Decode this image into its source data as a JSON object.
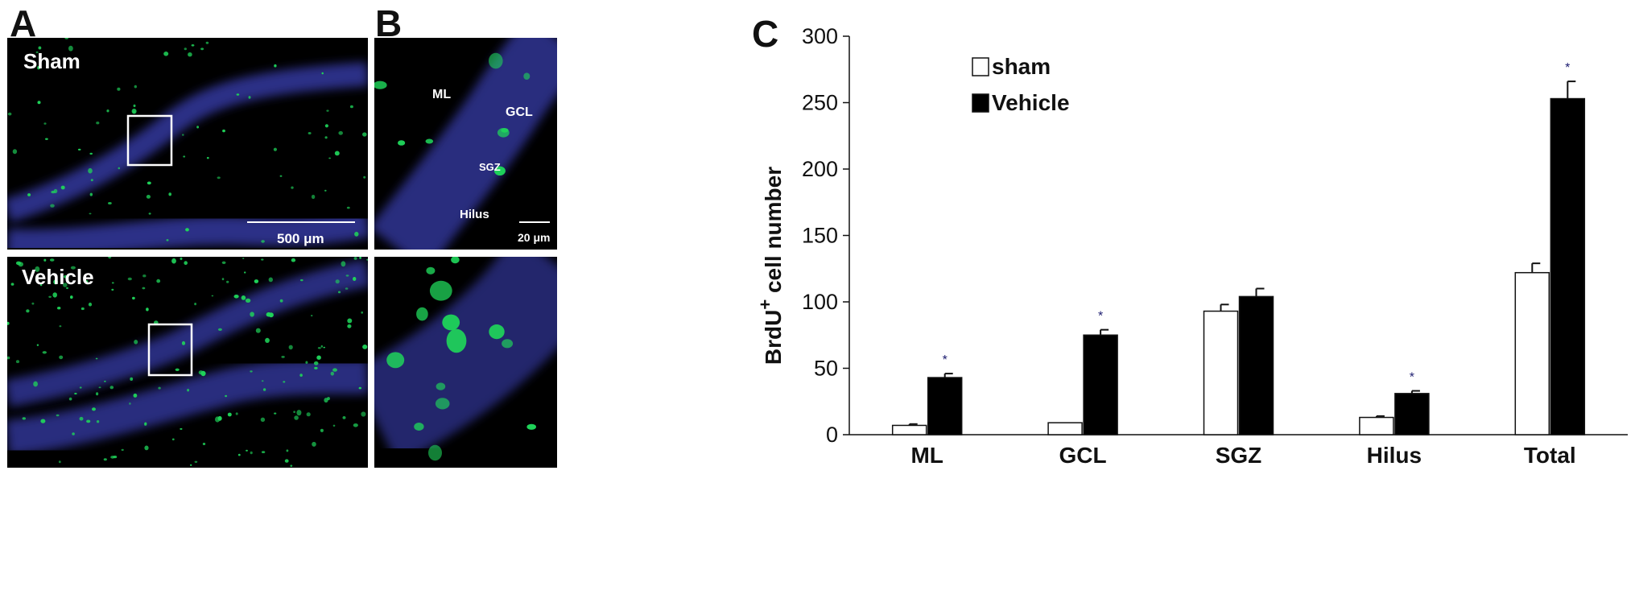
{
  "panels": {
    "a_letter": "A",
    "b_letter": "B",
    "c_letter": "C"
  },
  "micrographs": {
    "a_top_label": "Sham",
    "a_bottom_label": "Vehicle",
    "a_scale": "500 μm",
    "b_scale": "20 μm",
    "b_regions": [
      "ML",
      "GCL",
      "SGZ",
      "Hilus"
    ],
    "colors": {
      "nuclei": "#3b3fb4",
      "brdu": "#1fd45a",
      "background": "#000000"
    }
  },
  "chart_data": {
    "type": "bar",
    "categories": [
      "ML",
      "GCL",
      "SGZ",
      "Hilus",
      "Total"
    ],
    "series": [
      {
        "name": "sham",
        "values": [
          7,
          9,
          93,
          13,
          122
        ],
        "errors": [
          1,
          0,
          5,
          1,
          7
        ],
        "color": "#ffffff",
        "significant": [
          false,
          false,
          false,
          false,
          false
        ]
      },
      {
        "name": "Vehicle",
        "values": [
          43,
          75,
          104,
          31,
          253
        ],
        "errors": [
          3,
          4,
          6,
          2,
          13
        ],
        "color": "#000000",
        "significant": [
          true,
          true,
          false,
          true,
          true
        ]
      }
    ],
    "ylabel_main": "BrdU",
    "ylabel_sup": "+",
    "ylabel_rest": " cell number",
    "ylim": [
      0,
      300
    ],
    "yticks": [
      "0",
      "50",
      "100",
      "150",
      "200",
      "250",
      "300"
    ],
    "significance_mark": "*",
    "legend_position": "top-left",
    "grid": false
  }
}
